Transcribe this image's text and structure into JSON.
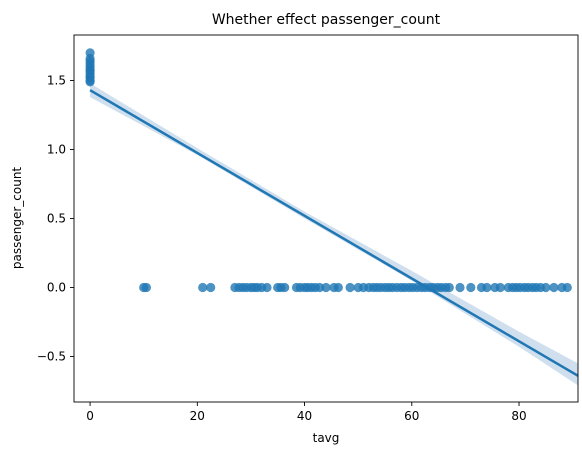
{
  "chart_data": {
    "type": "scatter",
    "title": "Whether effect passenger_count",
    "xlabel": "tavg",
    "ylabel": "passenger_count",
    "xlim": [
      -3,
      91
    ],
    "ylim": [
      -0.83,
      1.83
    ],
    "x_ticks": [
      0,
      20,
      40,
      60,
      80
    ],
    "x_tick_labels": [
      "0",
      "20",
      "40",
      "60",
      "80"
    ],
    "y_ticks": [
      -0.5,
      0.0,
      0.5,
      1.0,
      1.5
    ],
    "y_tick_labels": [
      "−0.5",
      "0.0",
      "0.5",
      "1.0",
      "1.5"
    ],
    "grid": false,
    "colors": {
      "points": "#1f77b4",
      "line": "#1f77b4",
      "band": "#a9c4e0"
    },
    "points": [
      [
        0,
        1.7
      ],
      [
        0,
        1.66
      ],
      [
        0,
        1.64
      ],
      [
        0,
        1.62
      ],
      [
        0,
        1.6
      ],
      [
        0,
        1.58
      ],
      [
        0,
        1.57
      ],
      [
        0,
        1.55
      ],
      [
        0,
        1.53
      ],
      [
        0,
        1.52
      ],
      [
        0,
        1.5
      ],
      [
        0,
        1.49
      ],
      [
        10,
        0
      ],
      [
        10.5,
        0
      ],
      [
        21,
        0
      ],
      [
        22.5,
        0
      ],
      [
        27,
        0
      ],
      [
        27.8,
        0
      ],
      [
        28.5,
        0
      ],
      [
        29.2,
        0
      ],
      [
        30,
        0
      ],
      [
        30.6,
        0
      ],
      [
        31.2,
        0
      ],
      [
        32,
        0
      ],
      [
        33,
        0
      ],
      [
        35,
        0
      ],
      [
        35.6,
        0
      ],
      [
        36.3,
        0
      ],
      [
        38.5,
        0
      ],
      [
        39.2,
        0
      ],
      [
        40,
        0
      ],
      [
        40.6,
        0
      ],
      [
        41.3,
        0
      ],
      [
        42,
        0
      ],
      [
        42.8,
        0
      ],
      [
        44,
        0
      ],
      [
        45.5,
        0
      ],
      [
        46.3,
        0
      ],
      [
        48.5,
        0
      ],
      [
        50,
        0
      ],
      [
        51,
        0
      ],
      [
        52,
        0
      ],
      [
        52.8,
        0
      ],
      [
        53.5,
        0
      ],
      [
        54.2,
        0
      ],
      [
        55,
        0
      ],
      [
        55.7,
        0
      ],
      [
        56.4,
        0
      ],
      [
        57.2,
        0
      ],
      [
        58,
        0
      ],
      [
        58.7,
        0
      ],
      [
        59.5,
        0
      ],
      [
        60.2,
        0
      ],
      [
        61,
        0
      ],
      [
        61.8,
        0
      ],
      [
        62.5,
        0
      ],
      [
        63.3,
        0
      ],
      [
        64,
        0
      ],
      [
        64.8,
        0
      ],
      [
        65.5,
        0
      ],
      [
        66.3,
        0
      ],
      [
        67,
        0
      ],
      [
        69,
        0
      ],
      [
        71,
        0
      ],
      [
        73,
        0
      ],
      [
        74,
        0
      ],
      [
        75.5,
        0
      ],
      [
        76.5,
        0
      ],
      [
        78,
        0
      ],
      [
        78.8,
        0
      ],
      [
        79.5,
        0
      ],
      [
        80.2,
        0
      ],
      [
        81,
        0
      ],
      [
        81.7,
        0
      ],
      [
        82.5,
        0
      ],
      [
        83.2,
        0
      ],
      [
        84,
        0
      ],
      [
        85,
        0
      ],
      [
        86.5,
        0
      ],
      [
        88,
        0
      ],
      [
        89,
        0
      ]
    ],
    "regression": {
      "intercept": 1.43,
      "slope": -0.02275
    },
    "ci_band": [
      [
        0,
        1.38,
        1.48
      ],
      [
        20,
        0.96,
        1.01
      ],
      [
        40,
        0.5,
        0.55
      ],
      [
        60,
        0.05,
        0.12
      ],
      [
        80,
        -0.43,
        -0.32
      ],
      [
        91,
        -0.71,
        -0.55
      ]
    ]
  }
}
